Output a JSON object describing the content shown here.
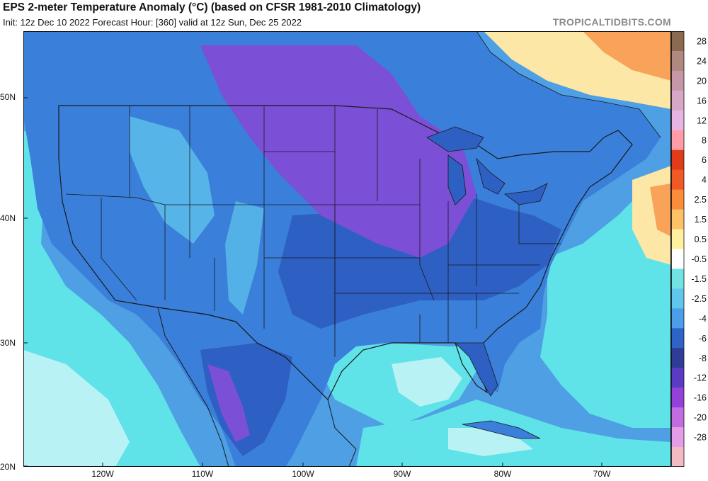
{
  "header": {
    "title": "EPS 2-meter Temperature Anomaly (°C) (based on CFSR 1981-2010 Climatology)",
    "subtitle": "Init: 12z Dec 10 2022   Forecast Hour: [360]   valid at 12z Sun, Dec 25 2022",
    "brand": "TROPICALTIDBITS.COM"
  },
  "axes": {
    "lat_labels": [
      "50N",
      "40N",
      "30N",
      "20N"
    ],
    "lon_labels": [
      "120W",
      "110W",
      "100W",
      "90W",
      "80W",
      "70W"
    ]
  },
  "colorbar": {
    "labels": [
      "28",
      "24",
      "20",
      "16",
      "12",
      "8",
      "6",
      "4",
      "2.5",
      "1.5",
      "0.5",
      "-0.5",
      "-1.5",
      "-2.5",
      "-4",
      "-6",
      "-8",
      "-12",
      "-16",
      "-20",
      "-28"
    ],
    "colors": [
      "#8a6a50",
      "#b08880",
      "#c797a8",
      "#d7a7c6",
      "#e7b4e4",
      "#ff9ca8",
      "#e03c1a",
      "#f25a25",
      "#fa8c3a",
      "#fdc166",
      "#fff0a0",
      "#ffffff",
      "#72e3e3",
      "#60c6ec",
      "#4d9ee8",
      "#2e63c8",
      "#2f3d97",
      "#5a3cc4",
      "#9242d9",
      "#c16de0",
      "#e49de6",
      "#f4bac4"
    ]
  },
  "map": {
    "colors": {
      "ocean_cyan": "#5fe2e8",
      "pale_cyan": "#b8f2f4",
      "mid_blue": "#3a7fd9",
      "deep_blue": "#2e5fc3",
      "purple": "#7b4fd6",
      "warm_orange": "#f9a25a",
      "pale_yellow": "#fde7a6",
      "border": "#1a1a1a"
    }
  }
}
